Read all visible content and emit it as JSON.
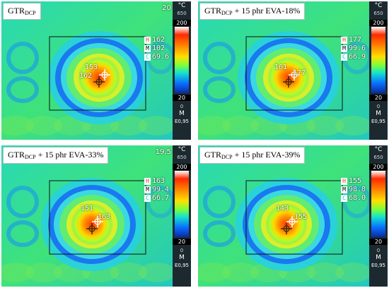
{
  "panels": [
    {
      "label_main": "GTR",
      "label_sub": "DCP",
      "label_rest": "",
      "top_value": "20",
      "scale": {
        "unit": "°C",
        "range_max": "650",
        "max": "200",
        "min": "20",
        "range_min": "0",
        "mode": "M",
        "emissivity": "E0,95"
      },
      "readout": {
        "H": "162",
        "M": "102",
        "C": "69.6"
      },
      "spot_a": "153",
      "spot_b": "162"
    },
    {
      "label_main": "GTR",
      "label_sub": "DCP",
      "label_rest": " + 15 phr EVA-18%",
      "top_value": "",
      "scale": {
        "unit": "°C",
        "range_max": "650",
        "max": "200",
        "min": "20",
        "range_min": "0",
        "mode": "M",
        "emissivity": "E0,95"
      },
      "readout": {
        "H": "177",
        "M": "99.6",
        "C": "66.9"
      },
      "spot_a": "161",
      "spot_b": "177"
    },
    {
      "label_main": "GTR",
      "label_sub": "DCP",
      "label_rest": " + 15 phr EVA-33%",
      "top_value": "19,5",
      "scale": {
        "unit": "°C",
        "range_max": "650",
        "max": "200",
        "min": "20",
        "range_min": "0",
        "mode": "M",
        "emissivity": "E0,95"
      },
      "readout": {
        "H": "163",
        "M": "99.4",
        "C": "66.7"
      },
      "spot_a": "151",
      "spot_b": "163"
    },
    {
      "label_main": "GTR",
      "label_sub": "DCP",
      "label_rest": " + 15 phr EVA-39%",
      "top_value": "",
      "scale": {
        "unit": "°C",
        "range_max": "650",
        "max": "200",
        "min": "20",
        "range_min": "0",
        "mode": "M",
        "emissivity": "E0,95"
      },
      "readout": {
        "H": "155",
        "M": "98.8",
        "C": "68.0"
      },
      "spot_a": "143",
      "spot_b": "155"
    }
  ]
}
